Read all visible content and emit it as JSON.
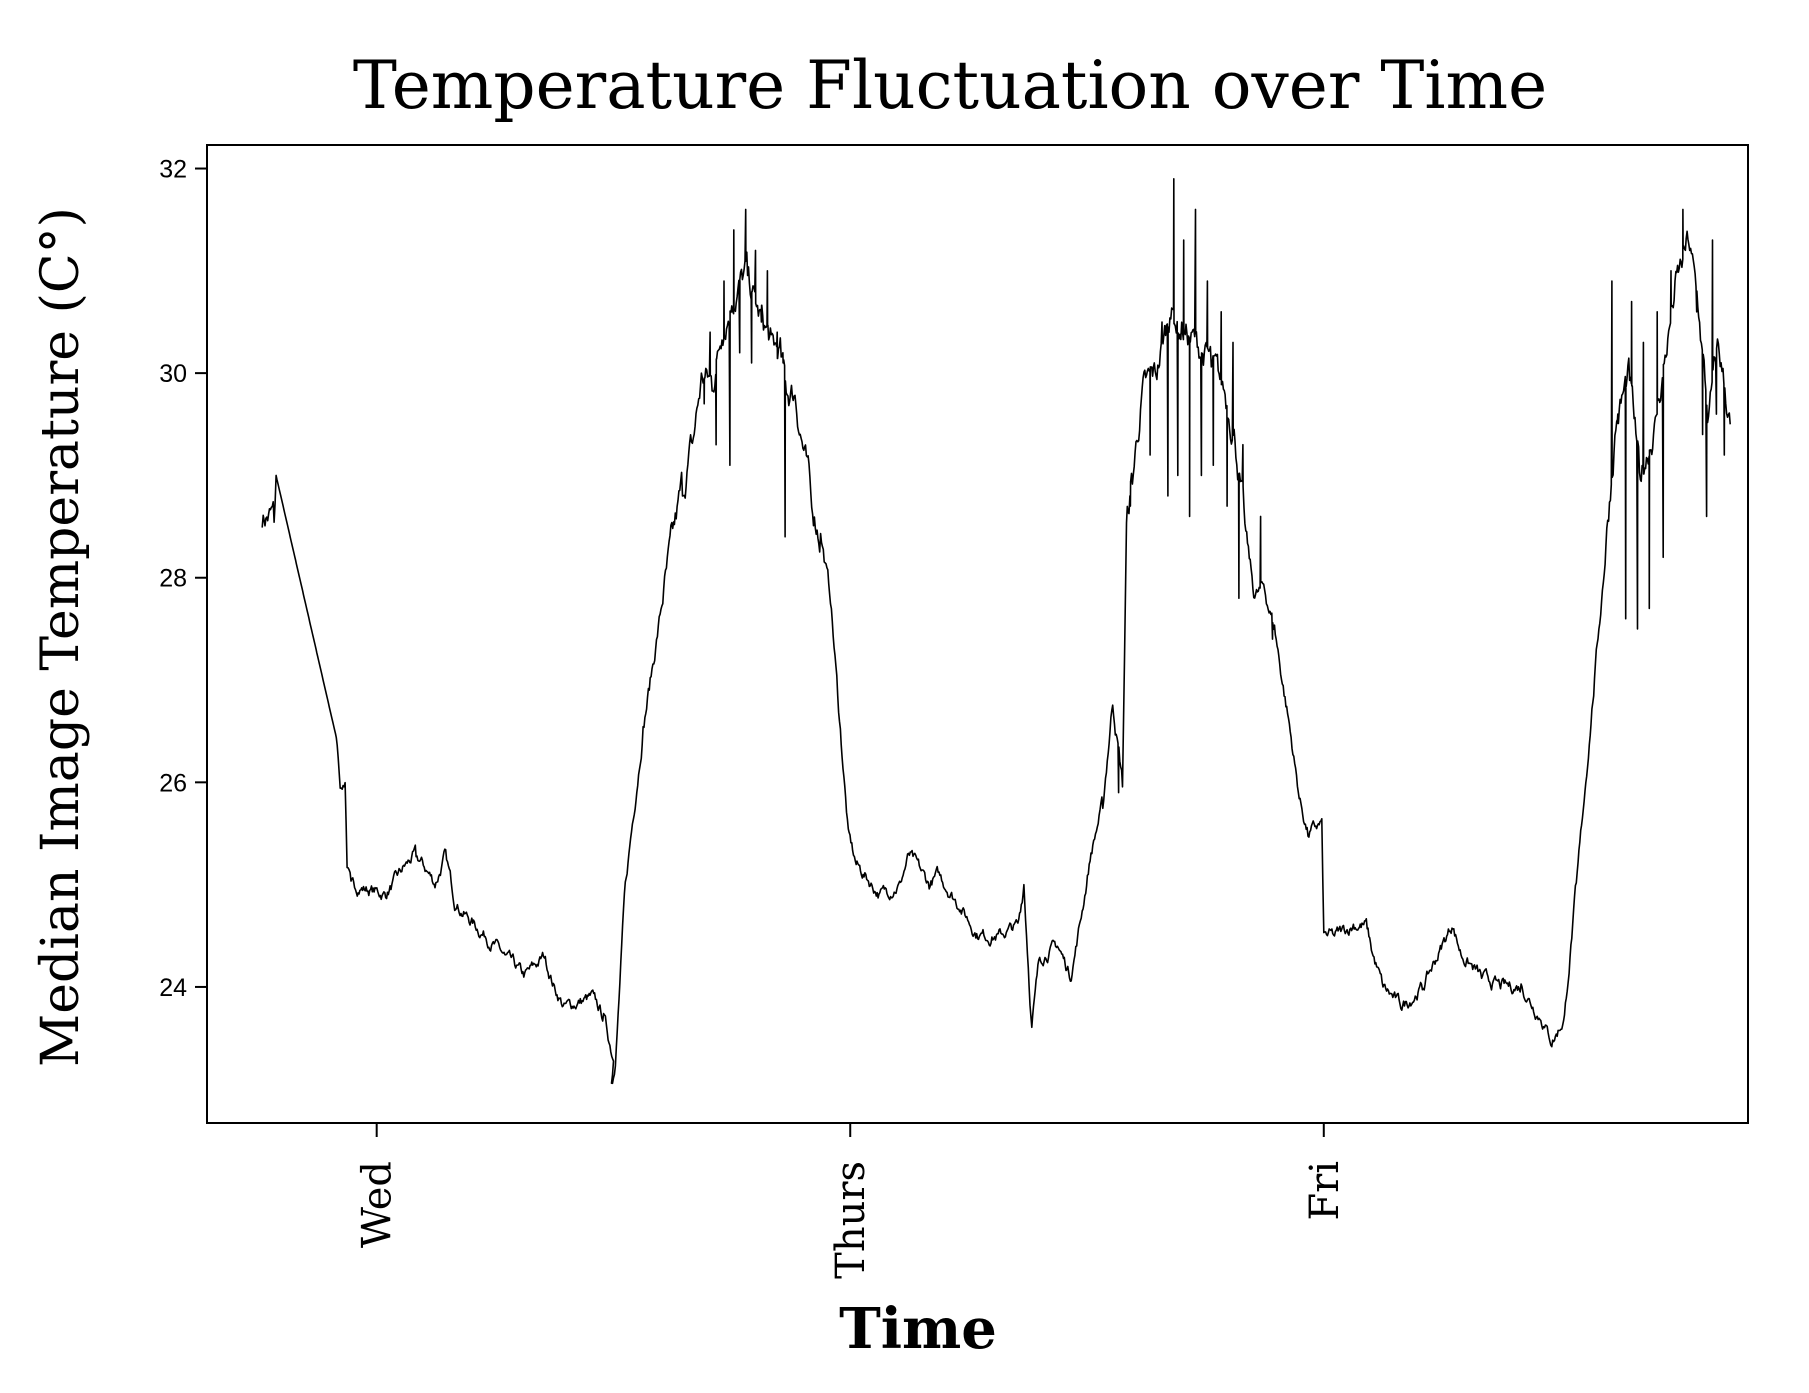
{
  "chart_data": {
    "type": "line",
    "title": "Temperature Fluctuation over Time",
    "xlabel": "Time",
    "ylabel": "Median Image Temperature (C°)",
    "x_tick_labels": [
      "Wed",
      "Thurs",
      "Fri"
    ],
    "x_ticks": [
      0,
      24,
      48
    ],
    "xlim": [
      -8.6,
      69.5
    ],
    "y_ticks": [
      24,
      26,
      28,
      30,
      32
    ],
    "ylim": [
      22.67,
      32.23
    ],
    "grid": false,
    "legend": "none",
    "line_color": "#000000",
    "noise_seed": 7,
    "anchor_points": [
      [
        -5.8,
        28.6
      ],
      [
        -5.2,
        28.6
      ],
      [
        -5.1,
        29.0
      ],
      [
        -2.0,
        26.4
      ],
      [
        -1.8,
        25.9
      ],
      [
        -1.6,
        26.0
      ],
      [
        -1.5,
        25.2
      ],
      [
        -1.3,
        25.0
      ],
      [
        0.5,
        24.9
      ],
      [
        1.5,
        25.2
      ],
      [
        2.0,
        25.3
      ],
      [
        3.0,
        25.0
      ],
      [
        3.5,
        25.3
      ],
      [
        4.0,
        24.8
      ],
      [
        5.5,
        24.5
      ],
      [
        6.5,
        24.3
      ],
      [
        7.5,
        24.1
      ],
      [
        8.5,
        24.3
      ],
      [
        9.0,
        24.0
      ],
      [
        9.5,
        23.8
      ],
      [
        11.0,
        23.9
      ],
      [
        11.5,
        23.7
      ],
      [
        12.0,
        23.3
      ],
      [
        11.9,
        23.1
      ],
      [
        12.1,
        23.2
      ],
      [
        12.6,
        25.0
      ],
      [
        13.5,
        26.5
      ],
      [
        14.5,
        27.8
      ],
      [
        15.5,
        28.9
      ],
      [
        16.0,
        29.3
      ],
      [
        16.5,
        30.0
      ],
      [
        17.0,
        29.9
      ],
      [
        17.5,
        30.4
      ],
      [
        18.0,
        30.7
      ],
      [
        18.8,
        31.0
      ],
      [
        19.3,
        30.6
      ],
      [
        20.0,
        30.3
      ],
      [
        20.5,
        30.2
      ],
      [
        20.8,
        29.8
      ],
      [
        21.2,
        29.8
      ],
      [
        22.0,
        28.8
      ],
      [
        22.5,
        28.4
      ],
      [
        23.0,
        27.8
      ],
      [
        23.5,
        26.5
      ],
      [
        23.9,
        25.5
      ],
      [
        24.3,
        25.2
      ],
      [
        25.5,
        24.9
      ],
      [
        26.5,
        25.0
      ],
      [
        27.0,
        25.3
      ],
      [
        28.0,
        25.0
      ],
      [
        28.5,
        25.1
      ],
      [
        29.5,
        24.8
      ],
      [
        30.5,
        24.5
      ],
      [
        31.5,
        24.5
      ],
      [
        32.5,
        24.6
      ],
      [
        32.8,
        25.0
      ],
      [
        33.2,
        23.6
      ],
      [
        33.6,
        24.3
      ],
      [
        34.5,
        24.4
      ],
      [
        35.2,
        24.1
      ],
      [
        35.8,
        24.8
      ],
      [
        36.2,
        25.3
      ],
      [
        36.8,
        25.8
      ],
      [
        37.3,
        26.8
      ],
      [
        37.8,
        26.0
      ],
      [
        38.0,
        28.5
      ],
      [
        38.3,
        29.0
      ],
      [
        38.8,
        29.8
      ],
      [
        39.5,
        30.0
      ],
      [
        40.2,
        30.6
      ],
      [
        40.8,
        30.4
      ],
      [
        41.5,
        30.3
      ],
      [
        42.3,
        30.1
      ],
      [
        43.0,
        29.8
      ],
      [
        43.5,
        29.4
      ],
      [
        44.0,
        28.5
      ],
      [
        44.5,
        27.8
      ],
      [
        45.0,
        27.9
      ],
      [
        45.5,
        27.5
      ],
      [
        46.3,
        26.5
      ],
      [
        46.8,
        25.8
      ],
      [
        47.2,
        25.5
      ],
      [
        47.9,
        25.6
      ],
      [
        48.0,
        24.5
      ],
      [
        48.5,
        24.5
      ],
      [
        49.5,
        24.6
      ],
      [
        50.2,
        24.6
      ],
      [
        50.5,
        24.3
      ],
      [
        51.0,
        24.0
      ],
      [
        52.0,
        23.8
      ],
      [
        53.0,
        24.0
      ],
      [
        54.0,
        24.4
      ],
      [
        54.5,
        24.6
      ],
      [
        55.0,
        24.3
      ],
      [
        56.0,
        24.1
      ],
      [
        57.0,
        24.0
      ],
      [
        58.0,
        24.0
      ],
      [
        59.0,
        23.7
      ],
      [
        59.6,
        23.45
      ],
      [
        60.2,
        23.7
      ],
      [
        60.8,
        25.0
      ],
      [
        61.5,
        26.5
      ],
      [
        62.3,
        28.3
      ],
      [
        62.8,
        29.5
      ],
      [
        63.5,
        30.0
      ],
      [
        64.0,
        29.0
      ],
      [
        64.8,
        29.5
      ],
      [
        65.8,
        30.8
      ],
      [
        66.5,
        31.3
      ],
      [
        67.0,
        30.6
      ],
      [
        67.5,
        29.5
      ],
      [
        68.0,
        30.3
      ],
      [
        68.6,
        29.5
      ]
    ],
    "spikes": [
      [
        16.6,
        29.7
      ],
      [
        16.9,
        30.4
      ],
      [
        17.2,
        29.3
      ],
      [
        17.6,
        30.9
      ],
      [
        17.9,
        29.1
      ],
      [
        18.1,
        31.4
      ],
      [
        18.4,
        30.2
      ],
      [
        18.7,
        31.6
      ],
      [
        19.0,
        30.1
      ],
      [
        19.2,
        31.2
      ],
      [
        19.5,
        30.5
      ],
      [
        19.8,
        31.0
      ],
      [
        20.3,
        30.4
      ],
      [
        20.6,
        30.1
      ],
      [
        20.7,
        28.4
      ],
      [
        38.2,
        28.7
      ],
      [
        39.2,
        29.2
      ],
      [
        39.8,
        30.5
      ],
      [
        40.1,
        28.8
      ],
      [
        40.4,
        31.9
      ],
      [
        40.6,
        29.0
      ],
      [
        40.9,
        31.3
      ],
      [
        41.2,
        28.6
      ],
      [
        41.5,
        31.6
      ],
      [
        41.8,
        29.0
      ],
      [
        42.1,
        30.9
      ],
      [
        42.4,
        29.1
      ],
      [
        42.8,
        30.6
      ],
      [
        43.1,
        28.7
      ],
      [
        43.4,
        30.3
      ],
      [
        43.7,
        27.8
      ],
      [
        43.9,
        29.3
      ],
      [
        44.8,
        28.6
      ],
      [
        45.4,
        27.4
      ],
      [
        37.6,
        25.9
      ],
      [
        62.6,
        30.9
      ],
      [
        62.9,
        29.6
      ],
      [
        63.3,
        27.6
      ],
      [
        63.6,
        30.7
      ],
      [
        63.9,
        27.5
      ],
      [
        64.2,
        30.3
      ],
      [
        64.5,
        27.7
      ],
      [
        64.9,
        30.6
      ],
      [
        65.2,
        28.2
      ],
      [
        65.6,
        31.0
      ],
      [
        66.2,
        31.6
      ],
      [
        66.9,
        30.6
      ],
      [
        67.2,
        29.4
      ],
      [
        67.4,
        28.6
      ],
      [
        67.7,
        31.3
      ],
      [
        67.9,
        29.6
      ],
      [
        68.3,
        29.2
      ]
    ]
  }
}
